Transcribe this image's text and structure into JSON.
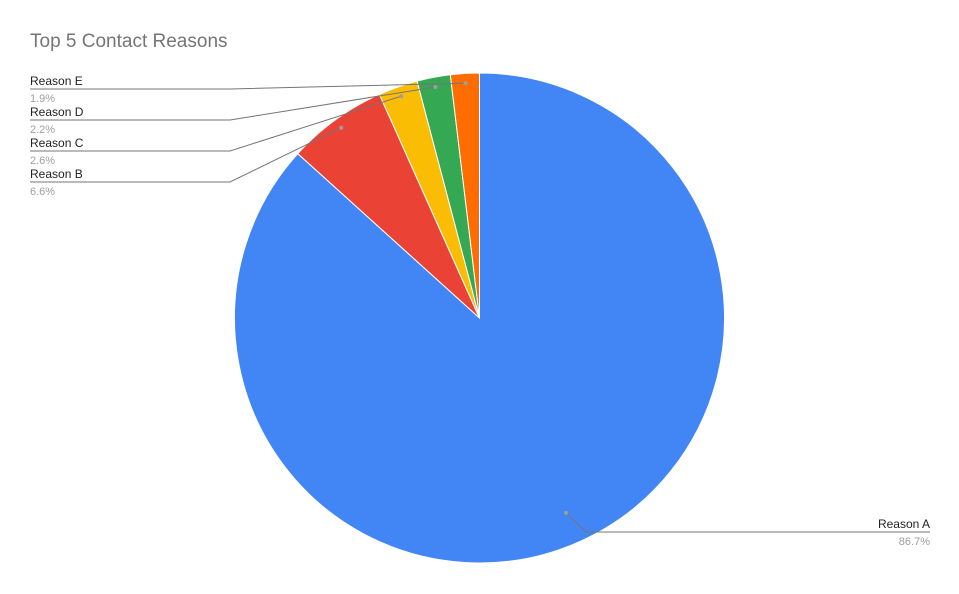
{
  "chart_data": {
    "type": "pie",
    "title": "Top 5 Contact Reasons",
    "slices": [
      {
        "name": "Reason A",
        "value": 86.7,
        "label": "86.7%",
        "color": "#4285f4"
      },
      {
        "name": "Reason B",
        "value": 6.6,
        "label": "6.6%",
        "color": "#ea4335"
      },
      {
        "name": "Reason C",
        "value": 2.6,
        "label": "2.6%",
        "color": "#fbbc04"
      },
      {
        "name": "Reason D",
        "value": 2.2,
        "label": "2.2%",
        "color": "#34a853"
      },
      {
        "name": "Reason E",
        "value": 1.9,
        "label": "1.9%",
        "color": "#ff6d01"
      }
    ],
    "legend": "none",
    "labels": "outside-with-leader-lines"
  }
}
